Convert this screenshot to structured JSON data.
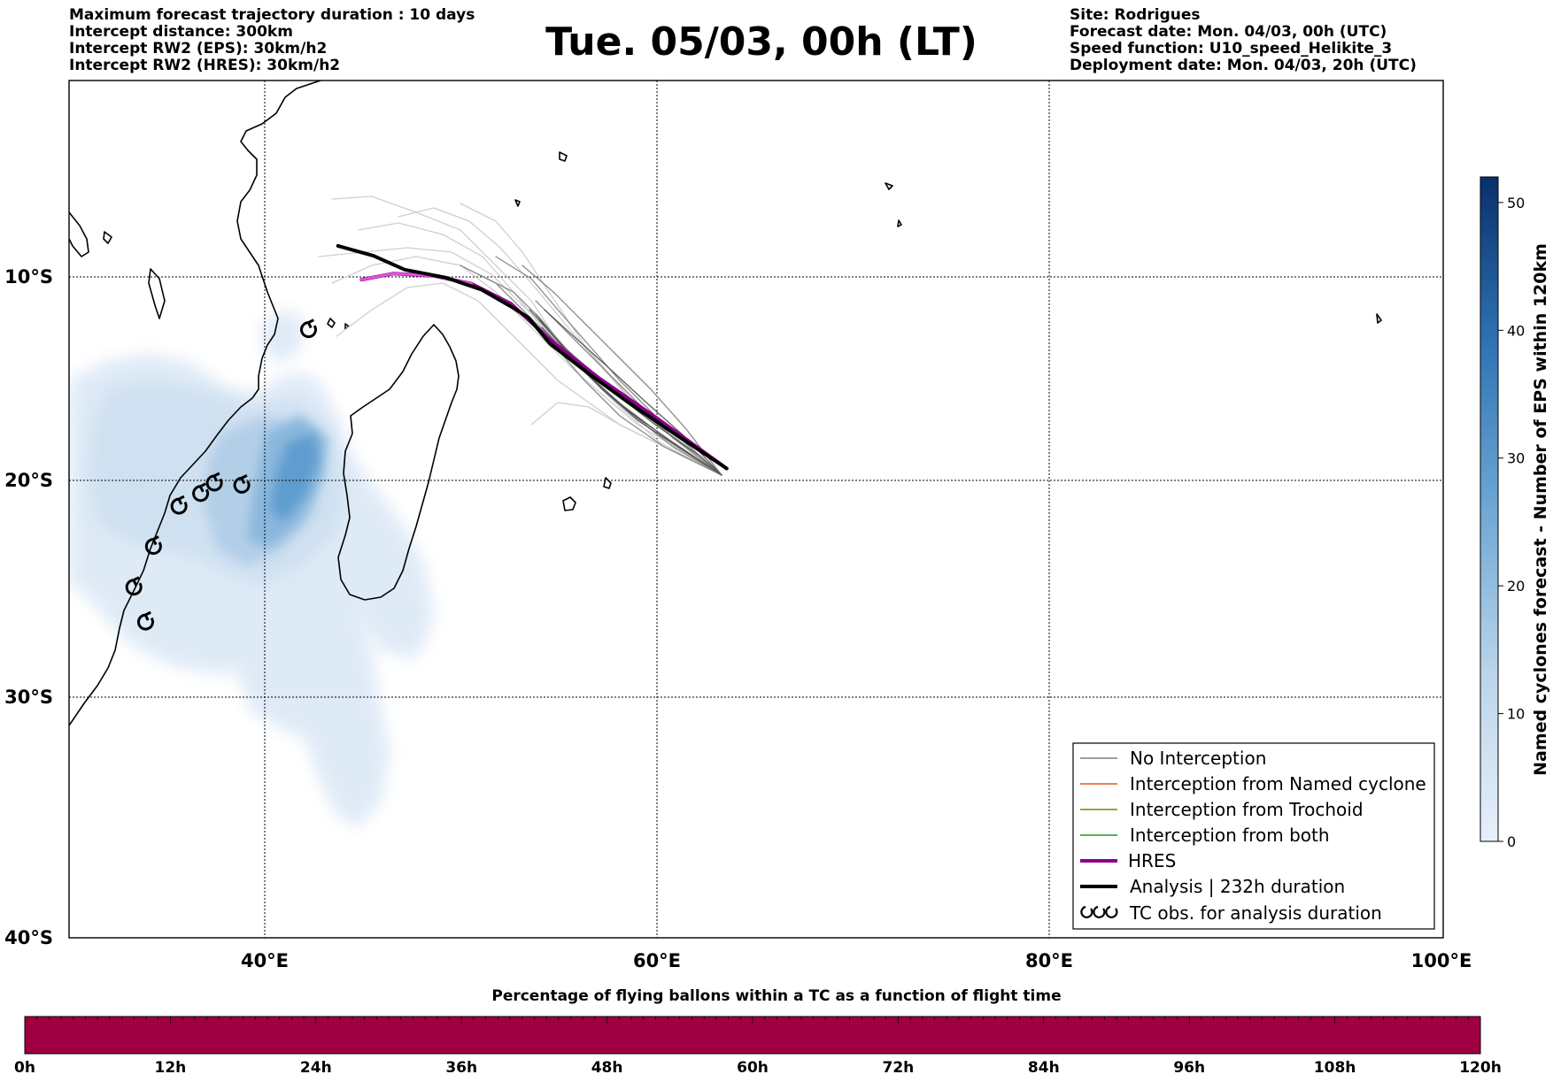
{
  "header": {
    "left": [
      "Maximum forecast trajectory duration : 10 days",
      "Intercept distance: 300km",
      "Intercept RW2 (EPS):  30km/h2",
      "Intercept RW2 (HRES): 30km/h2"
    ],
    "title": "Tue. 05/03, 00h (LT)",
    "right": [
      "Site: Rodrigues",
      "Forecast date: Mon. 04/03, 00h (UTC)",
      "Speed function: U10_speed_Helikite_3",
      "Deployment date: Mon. 04/03, 20h (UTC)"
    ]
  },
  "map": {
    "lat_labels": [
      "10°S",
      "20°S",
      "30°S",
      "40°S"
    ],
    "lon_labels": [
      "40°E",
      "60°E",
      "80°E",
      "100°E"
    ],
    "extent": {
      "lon": [
        30,
        100
      ],
      "lat": [
        -40,
        0
      ]
    },
    "colors": {
      "no_interception": "#7f7f7f",
      "named_cyclone": "#e8541a",
      "trochoid": "#808000",
      "both": "#1e9a1e",
      "hres": "#8b008b",
      "analysis": "#000000",
      "density_light": "#dde9f6",
      "density_dark": "#3a7fbc"
    }
  },
  "legend": [
    {
      "label": "No Interception",
      "style": "thin",
      "color": "#7f7f7f"
    },
    {
      "label": "Interception from Named cyclone",
      "style": "thin",
      "color": "#e8541a"
    },
    {
      "label": "Interception from Trochoid",
      "style": "thin",
      "color": "#808000"
    },
    {
      "label": "Interception from both",
      "style": "thin",
      "color": "#1e9a1e"
    },
    {
      "label": "HRES",
      "style": "thick",
      "color": "#8b008b"
    },
    {
      "label": "Analysis | 232h duration",
      "style": "thick",
      "color": "#000000"
    },
    {
      "label": "TC obs. for analysis duration",
      "style": "symbol",
      "color": "#000000"
    }
  ],
  "colorbar": {
    "title": "Named cyclones forecast - Number of EPS within 120km",
    "ticks": [
      "0",
      "10",
      "20",
      "30",
      "40",
      "50"
    ],
    "min": 0,
    "max": 52,
    "colors": [
      "#e6f0fa",
      "#08306b"
    ]
  },
  "time_bar": {
    "title": "Percentage of flying ballons within a TC as a function of flight time",
    "ticks": [
      "0h",
      "12h",
      "24h",
      "36h",
      "48h",
      "60h",
      "72h",
      "84h",
      "96h",
      "108h",
      "120h"
    ],
    "color": "#9e0041"
  },
  "chart_data": {
    "type": "map",
    "tc_observations_lonlat": [
      [
        42.2,
        -12.6
      ],
      [
        38.8,
        -20.2
      ],
      [
        37.4,
        -20.1
      ],
      [
        36.7,
        -20.6
      ],
      [
        35.6,
        -21.2
      ],
      [
        34.3,
        -23.1
      ],
      [
        33.3,
        -25.0
      ],
      [
        33.9,
        -26.6
      ]
    ],
    "analysis_track_lonlat": [
      [
        43.7,
        -8.4
      ],
      [
        45.5,
        -8.9
      ],
      [
        47.1,
        -9.6
      ],
      [
        49.2,
        -10.0
      ],
      [
        51.0,
        -10.6
      ],
      [
        52.6,
        -11.5
      ],
      [
        53.4,
        -12.0
      ],
      [
        54.5,
        -13.3
      ],
      [
        56.5,
        -14.8
      ],
      [
        58.5,
        -16.2
      ],
      [
        60.5,
        -17.5
      ],
      [
        63.5,
        -19.4
      ]
    ],
    "hres_track_lonlat": [
      [
        44.9,
        -10.1
      ],
      [
        46.5,
        -9.8
      ],
      [
        48.5,
        -9.9
      ],
      [
        50.5,
        -10.3
      ],
      [
        52.5,
        -11.3
      ],
      [
        54.5,
        -13.1
      ],
      [
        57.0,
        -15.0
      ],
      [
        60.0,
        -17.0
      ],
      [
        63.5,
        -19.4
      ]
    ]
  }
}
